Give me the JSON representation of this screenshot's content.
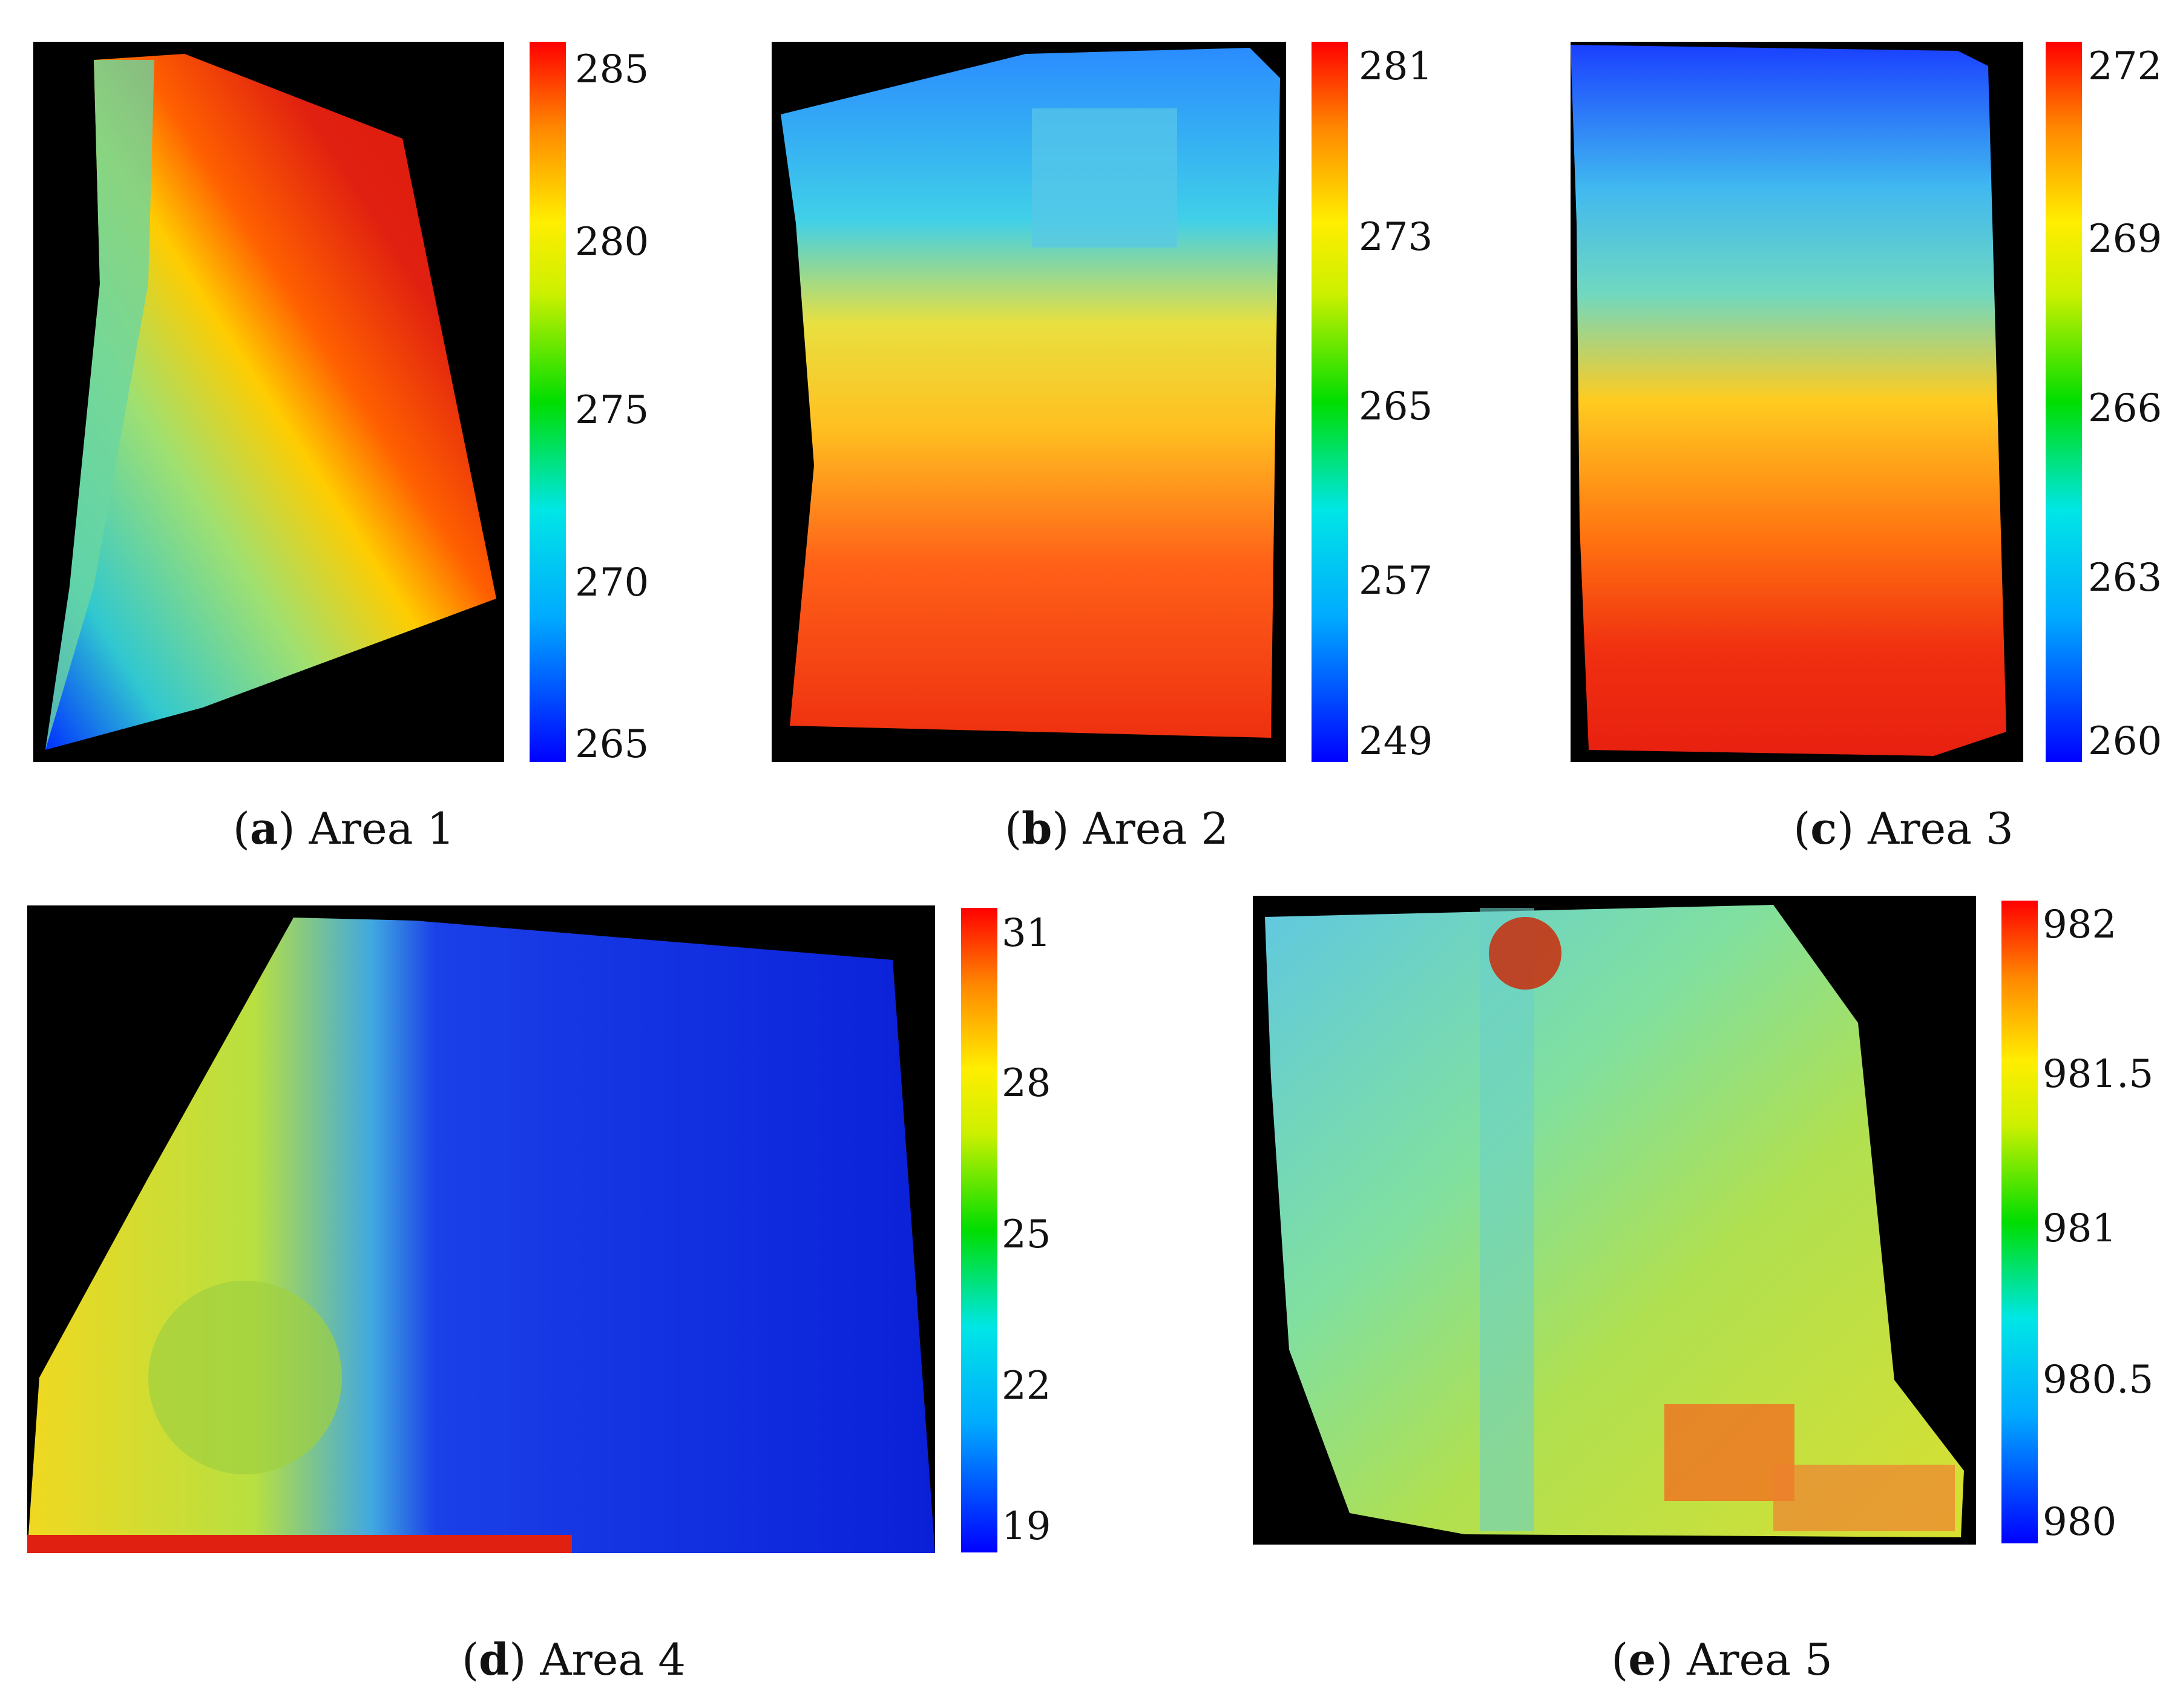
{
  "colors": {
    "jet": [
      "#0000ff",
      "#00c8ff",
      "#00e6e6",
      "#00e000",
      "#c8f000",
      "#ffff00",
      "#ffa500",
      "#ff5000",
      "#ff0000"
    ],
    "background": "#000000"
  },
  "panels": [
    {
      "letter": "a",
      "caption": "Area 1",
      "ticks": [
        "285",
        "280",
        "275",
        "270",
        "265"
      ]
    },
    {
      "letter": "b",
      "caption": "Area 2",
      "ticks": [
        "281",
        "273",
        "265",
        "257",
        "249"
      ]
    },
    {
      "letter": "c",
      "caption": "Area 3",
      "ticks": [
        "272",
        "269",
        "266",
        "263",
        "260"
      ]
    },
    {
      "letter": "d",
      "caption": "Area 4",
      "ticks": [
        "31",
        "28",
        "25",
        "22",
        "19"
      ]
    },
    {
      "letter": "e",
      "caption": "Area 5",
      "ticks": [
        "982",
        "981.5",
        "981",
        "980.5",
        "980"
      ]
    }
  ]
}
